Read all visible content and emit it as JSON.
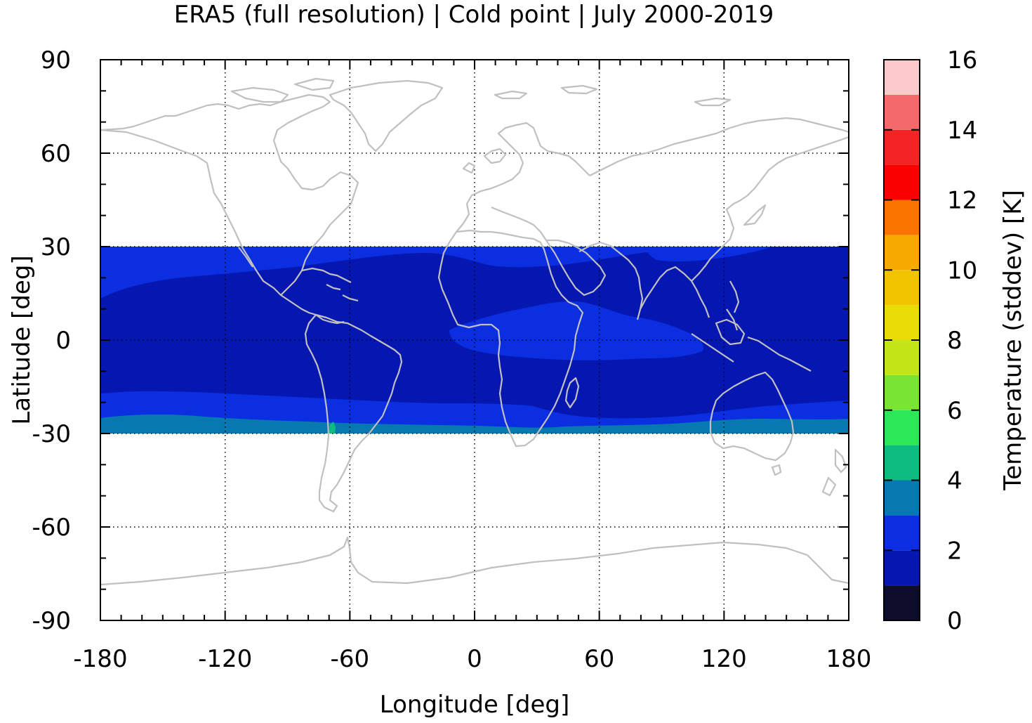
{
  "chart_data": {
    "type": "heatmap",
    "title": "ERA5 (full resolution) | Cold point | July 2000-2019",
    "xlabel": "Longitude [deg]",
    "ylabel": "Latitude [deg]",
    "xlim": [
      -180,
      180
    ],
    "ylim": [
      -90,
      90
    ],
    "x_ticks": [
      -180,
      -120,
      -60,
      0,
      60,
      120,
      180
    ],
    "y_ticks": [
      90,
      60,
      30,
      0,
      -30,
      -60,
      -90
    ],
    "x_tick_labels": [
      "-180",
      "-120",
      "-60",
      "0",
      "60",
      "120",
      "180"
    ],
    "y_tick_labels": [
      "90",
      "60",
      "30",
      "0",
      "-30",
      "-60",
      "-90"
    ],
    "grid": true,
    "data_lat_range": [
      -30,
      30
    ],
    "colorbar": {
      "label": "Temperature (stddev) [K]",
      "range": [
        0,
        16
      ],
      "tick_values": [
        0,
        2,
        4,
        6,
        8,
        10,
        12,
        14,
        16
      ],
      "tick_labels": [
        "0",
        "2",
        "4",
        "6",
        "8",
        "10",
        "12",
        "14",
        "16"
      ],
      "levels": [
        {
          "min": 0,
          "max": 1,
          "color": "#0d0d2b"
        },
        {
          "min": 1,
          "max": 2,
          "color": "#0517b0"
        },
        {
          "min": 2,
          "max": 3,
          "color": "#0a2ee0"
        },
        {
          "min": 3,
          "max": 4,
          "color": "#0878b0"
        },
        {
          "min": 4,
          "max": 5,
          "color": "#0cbc80"
        },
        {
          "min": 5,
          "max": 6,
          "color": "#2ce858"
        },
        {
          "min": 6,
          "max": 7,
          "color": "#7ae434"
        },
        {
          "min": 7,
          "max": 8,
          "color": "#c4e618"
        },
        {
          "min": 8,
          "max": 9,
          "color": "#e8dc04"
        },
        {
          "min": 9,
          "max": 10,
          "color": "#f2c400"
        },
        {
          "min": 10,
          "max": 11,
          "color": "#f8aa00"
        },
        {
          "min": 11,
          "max": 12,
          "color": "#fc7400"
        },
        {
          "min": 12,
          "max": 13,
          "color": "#fc0000"
        },
        {
          "min": 13,
          "max": 14,
          "color": "#f22424"
        },
        {
          "min": 14,
          "max": 15,
          "color": "#f46a6a"
        },
        {
          "min": 15,
          "max": 16,
          "color": "#fccaca"
        }
      ]
    },
    "field_regions": [
      {
        "level": "2-3",
        "description": "subtropical bands",
        "color": "#0a2ee0"
      },
      {
        "level": "1-2",
        "description": "deep tropics",
        "color": "#0517b0"
      },
      {
        "level": "3-4",
        "description": "southern edge near -30",
        "color": "#0878b0"
      }
    ],
    "colors": {
      "coastline": "#c0c0c0",
      "frame": "#000000"
    }
  }
}
